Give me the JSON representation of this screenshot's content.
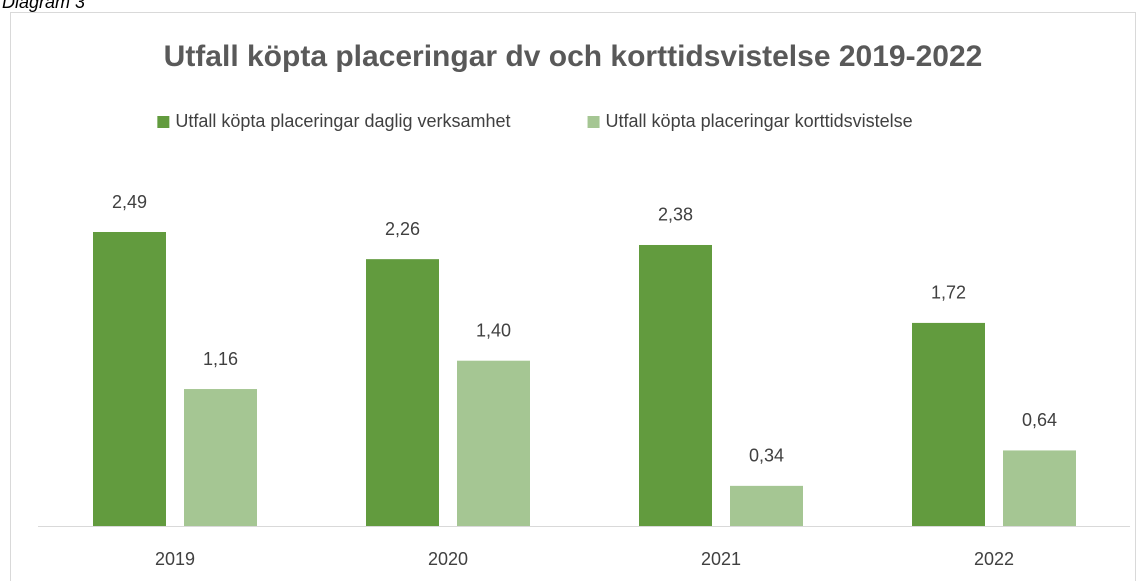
{
  "caption": "Diagram 3",
  "chart_data": {
    "type": "bar",
    "title": "Utfall köpta placeringar dv och korttidsvistelse 2019-2022",
    "categories": [
      "2019",
      "2020",
      "2021",
      "2022"
    ],
    "series": [
      {
        "name": "Utfall köpta placeringar daglig verksamhet",
        "color": "#629b3e",
        "values": [
          2.49,
          2.26,
          2.38,
          1.72
        ],
        "value_labels": [
          "2,49",
          "2,26",
          "2,38",
          "1,72"
        ]
      },
      {
        "name": "Utfall köpta placeringar korttidsvistelse",
        "color": "#a5c693",
        "values": [
          1.16,
          1.4,
          0.34,
          0.64
        ],
        "value_labels": [
          "1,16",
          "1,40",
          "0,34",
          "0,64"
        ]
      }
    ],
    "legend": "top"
  }
}
